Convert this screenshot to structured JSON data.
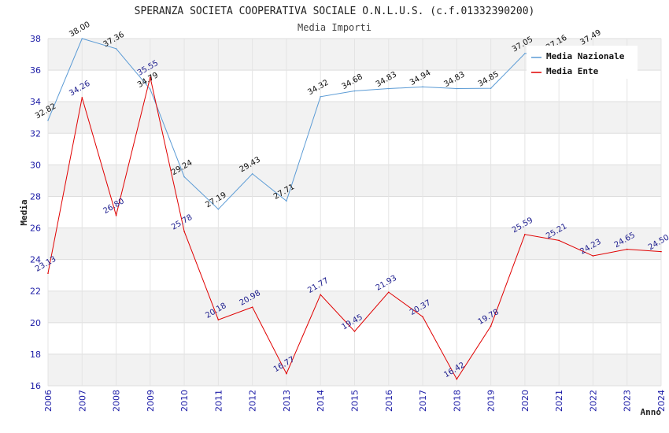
{
  "chart_data": {
    "type": "line",
    "title": "SPERANZA SOCIETA COOPERATIVA SOCIALE O.N.L.U.S. (c.f.01332390200)",
    "subtitle": "Media Importi",
    "xlabel": "Anno",
    "ylabel": "Media",
    "ylim": [
      16,
      38
    ],
    "yticks": [
      16,
      18,
      20,
      22,
      24,
      26,
      28,
      30,
      32,
      34,
      36,
      38
    ],
    "categories": [
      "2006",
      "2007",
      "2008",
      "2009",
      "2010",
      "2011",
      "2012",
      "2013",
      "2014",
      "2015",
      "2016",
      "2017",
      "2018",
      "2019",
      "2020",
      "2021",
      "2022",
      "2023",
      "2024"
    ],
    "series": [
      {
        "name": "Media Nazionale",
        "color": "#5b9bd5",
        "label_color": "#111111",
        "values": [
          32.82,
          38.0,
          37.36,
          34.79,
          29.24,
          27.19,
          29.43,
          27.71,
          34.32,
          34.68,
          34.83,
          34.94,
          34.83,
          34.85,
          37.05,
          37.16,
          37.49,
          null,
          null
        ],
        "labels": [
          "32.82",
          "38.00",
          "37.36",
          "34.79",
          "29.24",
          "27.19",
          "29.43",
          "27.71",
          "34.32",
          "34.68",
          "34.83",
          "34.94",
          "34.83",
          "34.85",
          "37.05",
          "37.16",
          "37.49",
          "",
          ""
        ]
      },
      {
        "name": "Media Ente",
        "color": "#e00000",
        "label_color": "#1a1a8c",
        "values": [
          23.13,
          34.26,
          26.8,
          35.55,
          25.78,
          20.18,
          20.98,
          16.77,
          21.77,
          19.45,
          21.93,
          20.37,
          16.42,
          19.78,
          25.59,
          25.21,
          24.23,
          24.65,
          24.5
        ],
        "labels": [
          "23.13",
          "34.26",
          "26.80",
          "35.55",
          "25.78",
          "20.18",
          "20.98",
          "16.77",
          "21.77",
          "19.45",
          "21.93",
          "20.37",
          "16.42",
          "19.78",
          "25.59",
          "25.21",
          "24.23",
          "24.65",
          "24.50"
        ]
      }
    ],
    "legend": "top-right",
    "grid": true
  }
}
